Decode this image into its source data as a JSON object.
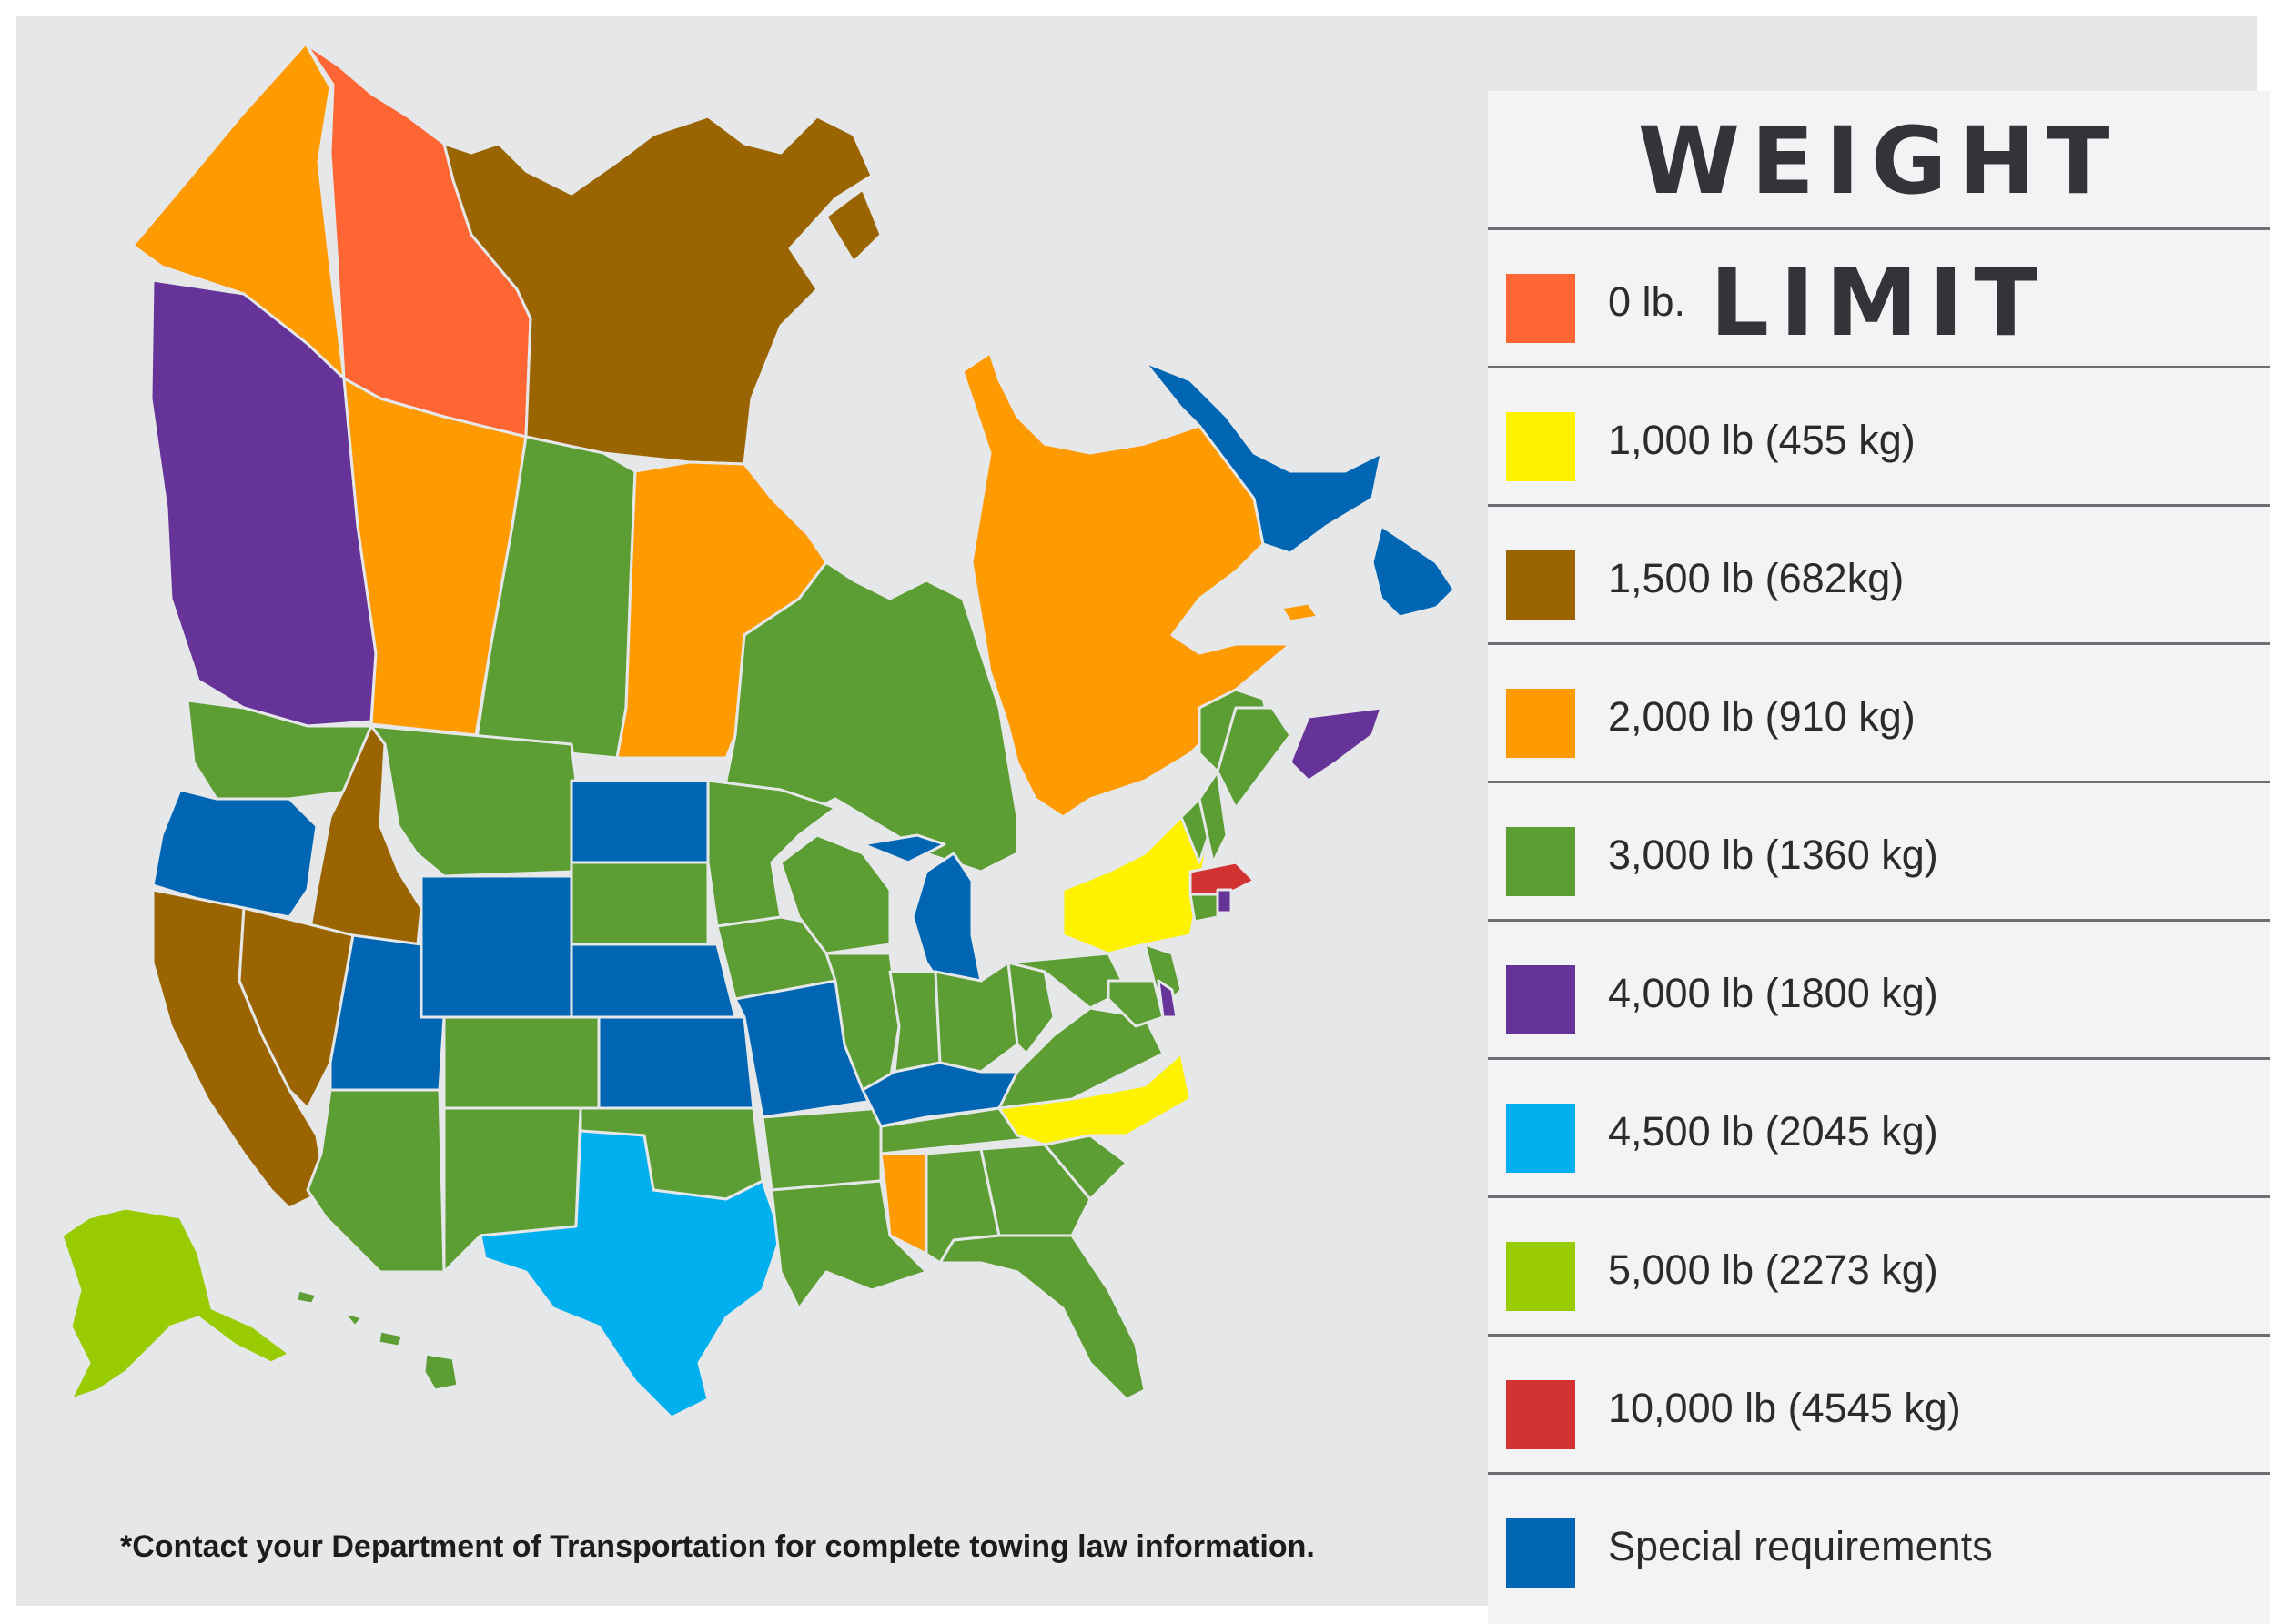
{
  "legend": {
    "title": "WEIGHT LIMIT",
    "items": [
      {
        "label": "0 lb.",
        "color": "#ff6633"
      },
      {
        "label": "1,000 lb (455 kg)",
        "color": "#fff200"
      },
      {
        "label": "1,500 lb (682kg)",
        "color": "#9a6500"
      },
      {
        "label": "2,000 lb (910 kg)",
        "color": "#ff9a00"
      },
      {
        "label": "3,000 lb (1360 kg)",
        "color": "#5d9e34"
      },
      {
        "label": "4,000 lb (1800 kg)",
        "color": "#663399"
      },
      {
        "label": "4,500 lb (2045 kg)",
        "color": "#00b0ee"
      },
      {
        "label": "5,000 lb (2273 kg)",
        "color": "#99cc00"
      },
      {
        "label": "10,000 lb (4545 kg)",
        "color": "#d23232"
      },
      {
        "label": "Special requirements",
        "color": "#0066b3"
      }
    ]
  },
  "regions": [
    {
      "name": "yukon",
      "category": "2,000 lb (910 kg)"
    },
    {
      "name": "northwest-territories",
      "category": "0 lb."
    },
    {
      "name": "nunavut",
      "category": "1,500 lb (682kg)"
    },
    {
      "name": "british-columbia",
      "category": "4,000 lb (1800 kg)"
    },
    {
      "name": "alberta",
      "category": "2,000 lb (910 kg)"
    },
    {
      "name": "saskatchewan",
      "category": "3,000 lb (1360 kg)"
    },
    {
      "name": "manitoba",
      "category": "2,000 lb (910 kg)"
    },
    {
      "name": "ontario",
      "category": "3,000 lb (1360 kg)"
    },
    {
      "name": "quebec",
      "category": "2,000 lb (910 kg)"
    },
    {
      "name": "labrador",
      "category": "Special requirements"
    },
    {
      "name": "newfoundland",
      "category": "Special requirements"
    },
    {
      "name": "new-brunswick",
      "category": "3,000 lb (1360 kg)"
    },
    {
      "name": "nova-scotia",
      "category": "4,000 lb (1800 kg)"
    },
    {
      "name": "prince-edward-island",
      "category": "2,000 lb (910 kg)"
    },
    {
      "name": "washington",
      "category": "3,000 lb (1360 kg)"
    },
    {
      "name": "oregon",
      "category": "Special requirements"
    },
    {
      "name": "idaho",
      "category": "1,500 lb (682kg)"
    },
    {
      "name": "montana",
      "category": "3,000 lb (1360 kg)"
    },
    {
      "name": "wyoming",
      "category": "Special requirements"
    },
    {
      "name": "california",
      "category": "1,500 lb (682kg)"
    },
    {
      "name": "nevada",
      "category": "1,500 lb (682kg)"
    },
    {
      "name": "utah",
      "category": "Special requirements"
    },
    {
      "name": "colorado",
      "category": "3,000 lb (1360 kg)"
    },
    {
      "name": "arizona",
      "category": "3,000 lb (1360 kg)"
    },
    {
      "name": "new-mexico",
      "category": "3,000 lb (1360 kg)"
    },
    {
      "name": "north-dakota",
      "category": "Special requirements"
    },
    {
      "name": "south-dakota",
      "category": "3,000 lb (1360 kg)"
    },
    {
      "name": "nebraska",
      "category": "Special requirements"
    },
    {
      "name": "kansas",
      "category": "Special requirements"
    },
    {
      "name": "oklahoma",
      "category": "3,000 lb (1360 kg)"
    },
    {
      "name": "texas",
      "category": "4,500 lb (2045 kg)"
    },
    {
      "name": "minnesota",
      "category": "3,000 lb (1360 kg)"
    },
    {
      "name": "iowa",
      "category": "3,000 lb (1360 kg)"
    },
    {
      "name": "missouri",
      "category": "Special requirements"
    },
    {
      "name": "arkansas",
      "category": "3,000 lb (1360 kg)"
    },
    {
      "name": "louisiana",
      "category": "3,000 lb (1360 kg)"
    },
    {
      "name": "wisconsin",
      "category": "3,000 lb (1360 kg)"
    },
    {
      "name": "michigan",
      "category": "Special requirements"
    },
    {
      "name": "illinois",
      "category": "3,000 lb (1360 kg)"
    },
    {
      "name": "indiana",
      "category": "3,000 lb (1360 kg)"
    },
    {
      "name": "ohio",
      "category": "3,000 lb (1360 kg)"
    },
    {
      "name": "kentucky",
      "category": "Special requirements"
    },
    {
      "name": "tennessee",
      "category": "3,000 lb (1360 kg)"
    },
    {
      "name": "mississippi",
      "category": "2,000 lb (910 kg)"
    },
    {
      "name": "alabama",
      "category": "3,000 lb (1360 kg)"
    },
    {
      "name": "georgia",
      "category": "3,000 lb (1360 kg)"
    },
    {
      "name": "florida",
      "category": "3,000 lb (1360 kg)"
    },
    {
      "name": "south-carolina",
      "category": "3,000 lb (1360 kg)"
    },
    {
      "name": "north-carolina",
      "category": "1,000 lb (455 kg)"
    },
    {
      "name": "virginia",
      "category": "3,000 lb (1360 kg)"
    },
    {
      "name": "west-virginia",
      "category": "3,000 lb (1360 kg)"
    },
    {
      "name": "pennsylvania",
      "category": "3,000 lb (1360 kg)"
    },
    {
      "name": "new-york",
      "category": "1,000 lb (455 kg)"
    },
    {
      "name": "new-jersey",
      "category": "3,000 lb (1360 kg)"
    },
    {
      "name": "delaware",
      "category": "4,000 lb (1800 kg)"
    },
    {
      "name": "maryland",
      "category": "3,000 lb (1360 kg)"
    },
    {
      "name": "massachusetts",
      "category": "10,000 lb (4545 kg)"
    },
    {
      "name": "connecticut",
      "category": "3,000 lb (1360 kg)"
    },
    {
      "name": "rhode-island",
      "category": "4,000 lb (1800 kg)"
    },
    {
      "name": "vermont",
      "category": "3,000 lb (1360 kg)"
    },
    {
      "name": "new-hampshire",
      "category": "3,000 lb (1360 kg)"
    },
    {
      "name": "maine",
      "category": "3,000 lb (1360 kg)"
    },
    {
      "name": "alaska",
      "category": "5,000 lb (2273 kg)"
    },
    {
      "name": "hawaii",
      "category": "3,000 lb (1360 kg)"
    }
  ],
  "footnote": "*Contact your Department of Transportation for complete towing law information."
}
